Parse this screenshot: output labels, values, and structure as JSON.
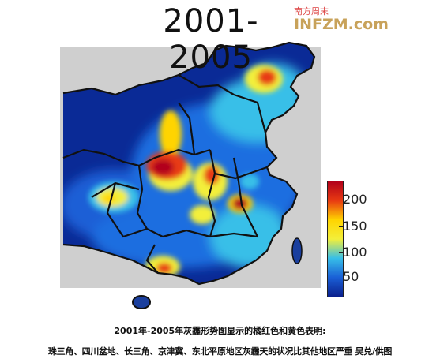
{
  "map": {
    "title": "2001-2005",
    "legend": {
      "ticks": [
        "200",
        "150",
        "100",
        "50"
      ],
      "colors": [
        "#b2001a",
        "#e83a12",
        "#ffd400",
        "#f3ef3a",
        "#37bfe8",
        "#1a5fd6",
        "#0a1f8c"
      ]
    },
    "colors": {
      "sea": "#1a3f9e",
      "border": "#111111",
      "land": "#0a2a96"
    }
  },
  "logo": {
    "top": "南方周末",
    "main": "INFZM.com"
  },
  "caption": {
    "line1": "2001年-2005年灰霾形势图显示的橘红色和黄色表明:",
    "line2": "珠三角、四川盆地、长三角、京津冀、东北平原地区灰霾天的状况比其他地区严重   吴兑/供图"
  }
}
